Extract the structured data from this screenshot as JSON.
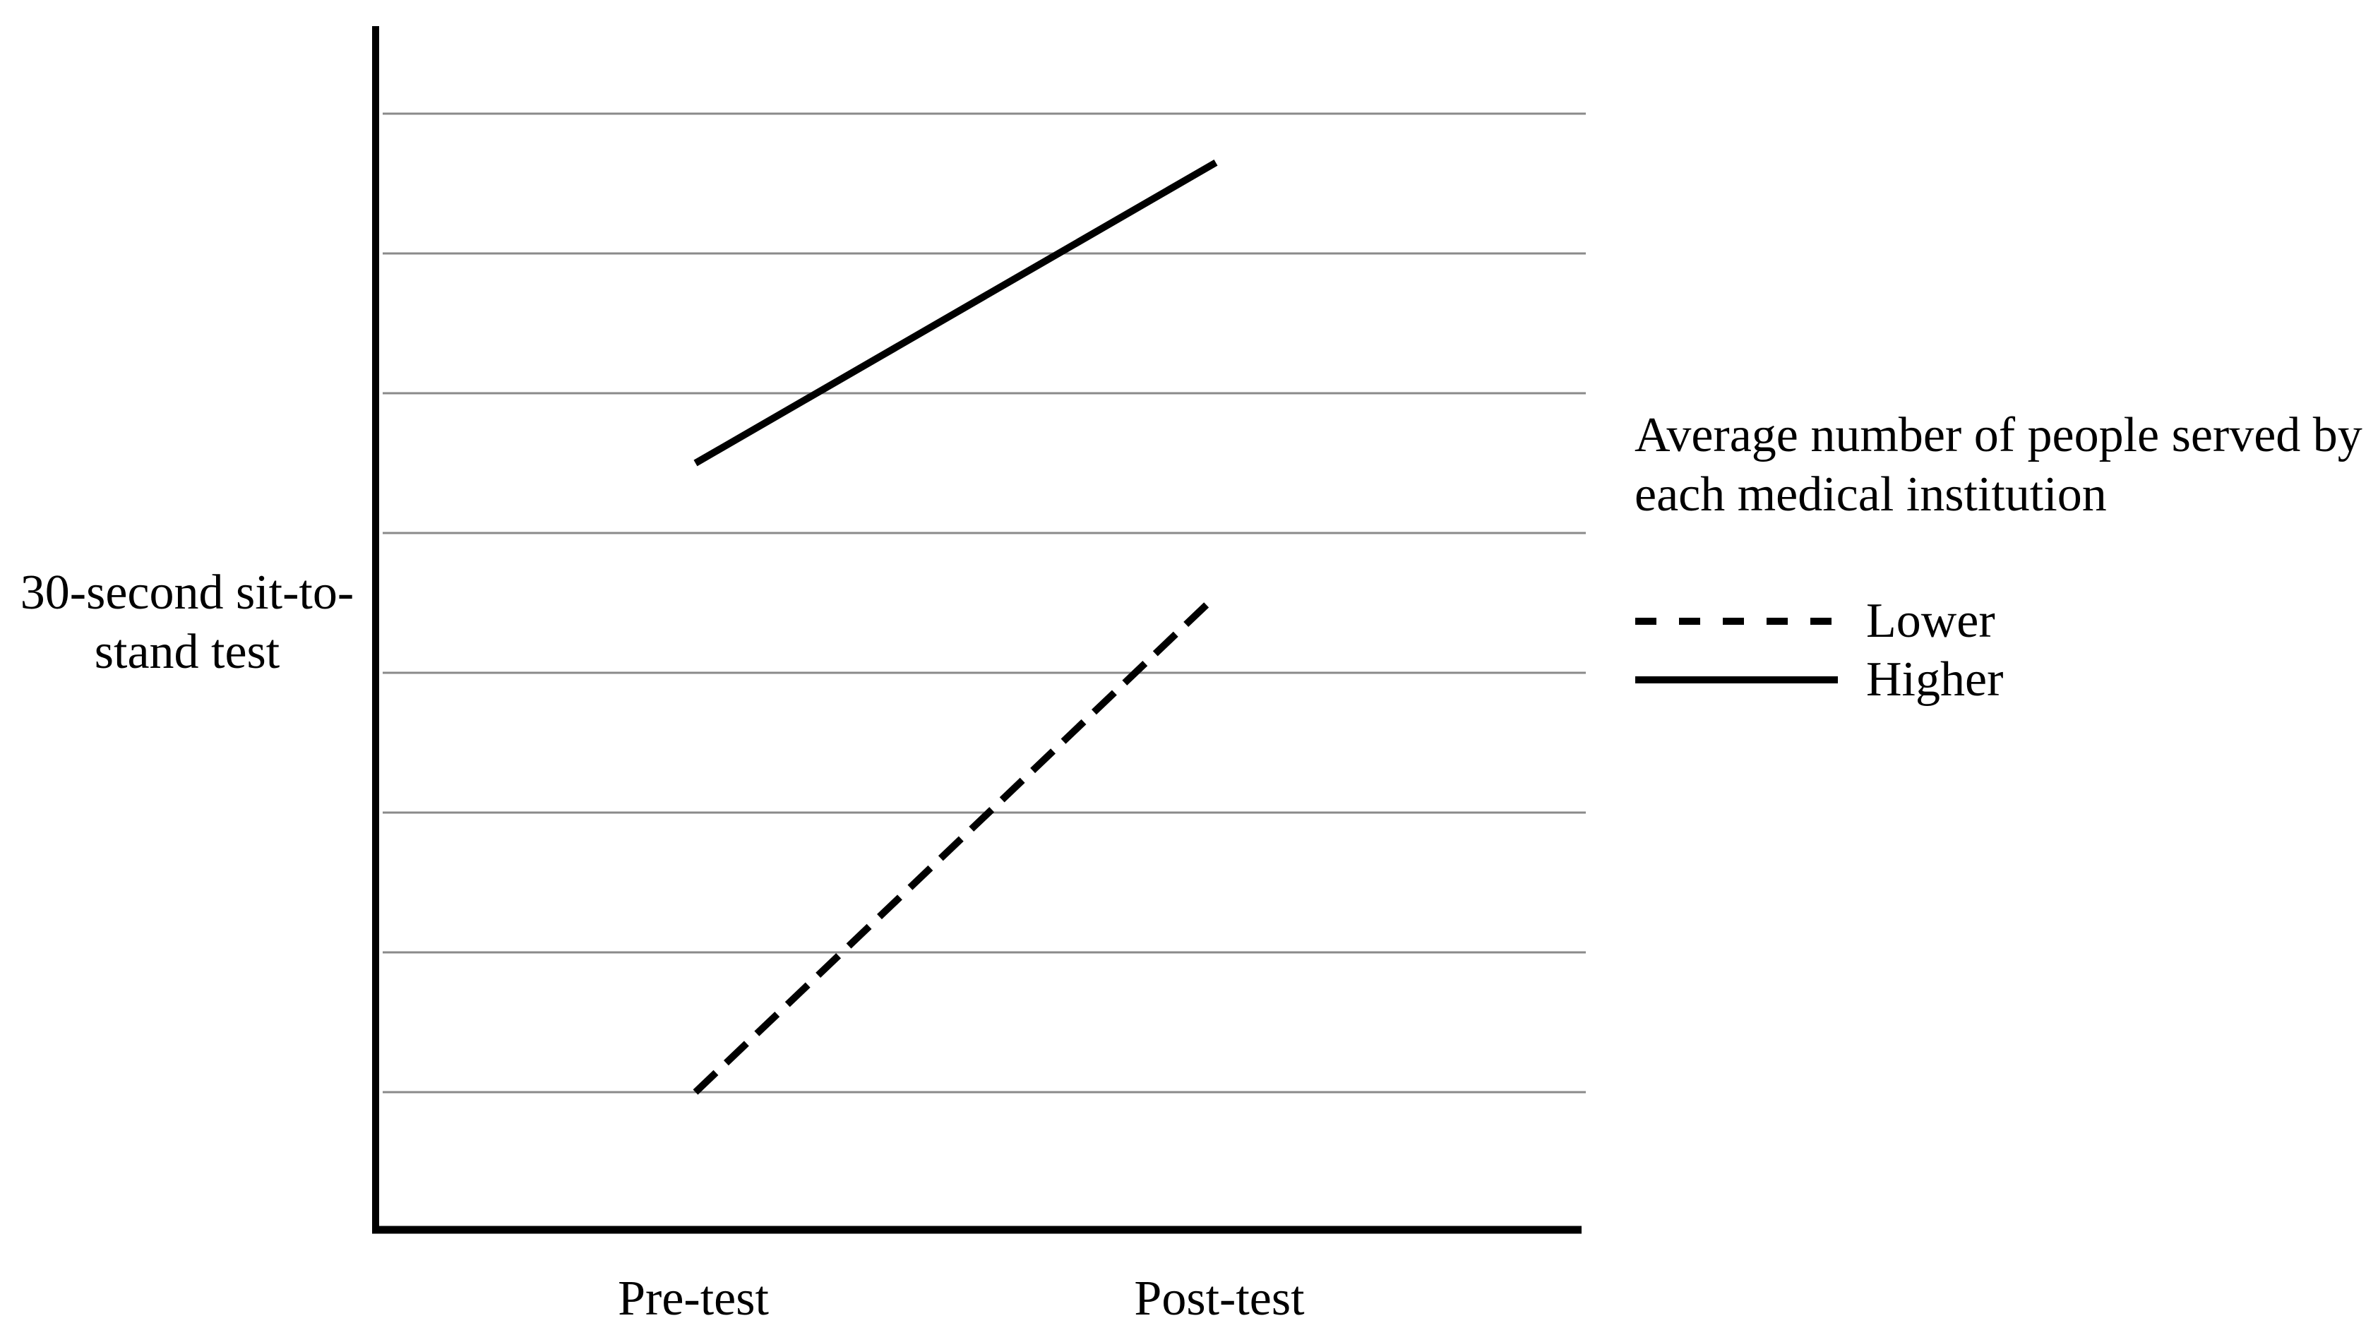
{
  "page": {
    "background": "#ffffff",
    "text_color": "#000000"
  },
  "chart_data": {
    "type": "line",
    "title": "",
    "xlabel": "",
    "ylabel": "30-second sit-to-stand test",
    "ylabel_lines": [
      "30-second sit-to-",
      "stand test"
    ],
    "categories": [
      "Pre-test",
      "Post-test"
    ],
    "series": [
      {
        "name": "Lower",
        "style": "dashed",
        "color": "#000000",
        "values": [
          1.0,
          4.55
        ]
      },
      {
        "name": "Higher",
        "style": "solid",
        "color": "#000000",
        "values": [
          5.5,
          7.65
        ]
      }
    ],
    "y_axis": {
      "tick_labels_visible": false,
      "gridline_levels": [
        1,
        2,
        3,
        4,
        5,
        6,
        7,
        8
      ],
      "ylim": [
        0,
        8.8
      ]
    },
    "grid": {
      "horizontal": true,
      "vertical": false,
      "color": "#8a8a8a"
    },
    "axis_color": "#000000",
    "legend": {
      "position": "right",
      "title": "Average number of people served by each medical institution",
      "title_lines": [
        "Average number of people served by",
        "each medical institution"
      ],
      "entries": [
        {
          "label": "Lower",
          "marker": "dashed-line"
        },
        {
          "label": "Higher",
          "marker": "solid-line"
        }
      ]
    }
  }
}
